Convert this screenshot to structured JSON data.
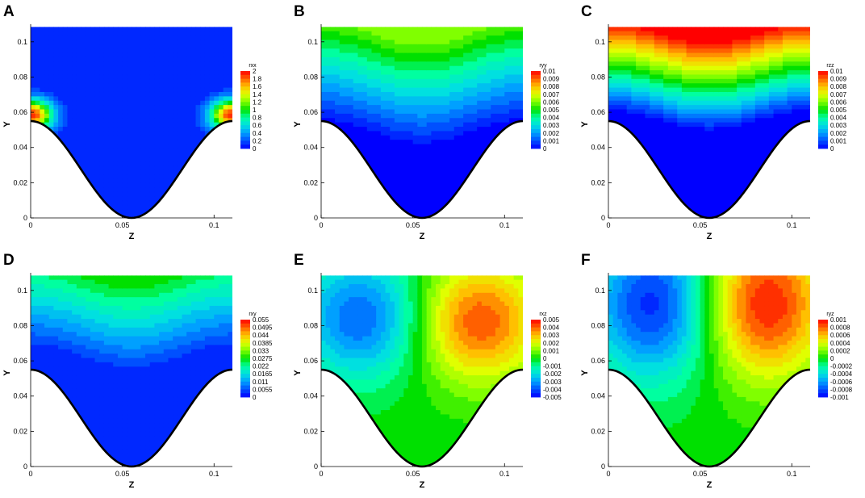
{
  "chart_data": [
    {
      "letter": "A",
      "type": "contour",
      "field": "rxx",
      "xlabel": "Z",
      "ylabel": "Y",
      "xticks": [
        "0",
        "0.05",
        "0.1"
      ],
      "yticks": [
        "0",
        "0.02",
        "0.04",
        "0.06",
        "0.08",
        "0.1"
      ],
      "xlim": [
        0,
        0.11
      ],
      "ylim": [
        0,
        0.11
      ],
      "legend": {
        "title": "rxx",
        "labels": [
          "2",
          "1.8",
          "1.6",
          "1.4",
          "1.2",
          "1",
          "0.8",
          "0.6",
          "0.4",
          "0.2",
          "0"
        ]
      },
      "pattern": "corner-peaks",
      "max": 2
    },
    {
      "letter": "B",
      "type": "contour",
      "field": "ryy",
      "xlabel": "Z",
      "ylabel": "Y",
      "xticks": [
        "0",
        "0.05",
        "0.1"
      ],
      "yticks": [
        "0",
        "0.02",
        "0.04",
        "0.06",
        "0.08",
        "0.1"
      ],
      "xlim": [
        0,
        0.11
      ],
      "ylim": [
        0,
        0.11
      ],
      "legend": {
        "title": "ryy",
        "labels": [
          "0.01",
          "0.009",
          "0.008",
          "0.007",
          "0.006",
          "0.005",
          "0.004",
          "0.003",
          "0.002",
          "0.001",
          "0"
        ]
      },
      "pattern": "top-band",
      "max": 0.01
    },
    {
      "letter": "C",
      "type": "contour",
      "field": "rzz",
      "xlabel": "Z",
      "ylabel": "Y",
      "xticks": [
        "0",
        "0.05",
        "0.1"
      ],
      "yticks": [
        "0",
        "0.02",
        "0.04",
        "0.06",
        "0.08",
        "0.1"
      ],
      "xlim": [
        0,
        0.11
      ],
      "ylim": [
        0,
        0.11
      ],
      "legend": {
        "title": "rzz",
        "labels": [
          "0.01",
          "0.009",
          "0.008",
          "0.007",
          "0.006",
          "0.005",
          "0.004",
          "0.003",
          "0.002",
          "0.001",
          "0"
        ]
      },
      "pattern": "top-band-strong",
      "max": 0.01
    },
    {
      "letter": "D",
      "type": "contour",
      "field": "rxy",
      "xlabel": "Z",
      "ylabel": "Y",
      "xticks": [
        "0",
        "0.05",
        "0.1"
      ],
      "yticks": [
        "0",
        "0.02",
        "0.04",
        "0.06",
        "0.08",
        "0.1"
      ],
      "xlim": [
        0,
        0.11
      ],
      "ylim": [
        0,
        0.11
      ],
      "legend": {
        "title": "rxy",
        "labels": [
          "0.055",
          "0.0495",
          "0.044",
          "0.0385",
          "0.033",
          "0.0275",
          "0.022",
          "0.0165",
          "0.011",
          "0.0055",
          "0"
        ]
      },
      "pattern": "top-band-weak",
      "max": 0.055
    },
    {
      "letter": "E",
      "type": "contour",
      "field": "rxz",
      "xlabel": "Z",
      "ylabel": "Y",
      "xticks": [
        "0",
        "0.05",
        "0.1"
      ],
      "yticks": [
        "0",
        "0.02",
        "0.04",
        "0.06",
        "0.08",
        "0.1"
      ],
      "xlim": [
        0,
        0.11
      ],
      "ylim": [
        0,
        0.11
      ],
      "legend": {
        "title": "rxz",
        "labels": [
          "0.005",
          "0.004",
          "0.003",
          "0.002",
          "0.001",
          "0",
          "-0.001",
          "-0.002",
          "-0.003",
          "-0.004",
          "-0.005"
        ]
      },
      "pattern": "dipole",
      "max": 0.005
    },
    {
      "letter": "F",
      "type": "contour",
      "field": "ryz",
      "xlabel": "Z",
      "ylabel": "Y",
      "xticks": [
        "0",
        "0.05",
        "0.1"
      ],
      "yticks": [
        "0",
        "0.02",
        "0.04",
        "0.06",
        "0.08",
        "0.1"
      ],
      "xlim": [
        0,
        0.11
      ],
      "ylim": [
        0,
        0.11
      ],
      "legend": {
        "title": "ryz",
        "labels": [
          "0.001",
          "0.0008",
          "0.0006",
          "0.0004",
          "0.0002",
          "0",
          "-0.0002",
          "-0.0004",
          "-0.0006",
          "-0.0008",
          "-0.001"
        ]
      },
      "pattern": "dipole-high",
      "max": 0.001
    }
  ],
  "colors": {
    "background": "#ffffff",
    "wall": "#000000",
    "colormap": [
      "#0000ff",
      "#0050ff",
      "#00a0ff",
      "#00e0e0",
      "#00ffa0",
      "#00e000",
      "#80ff00",
      "#e0ff00",
      "#ffc000",
      "#ff6000",
      "#ff0000"
    ]
  }
}
